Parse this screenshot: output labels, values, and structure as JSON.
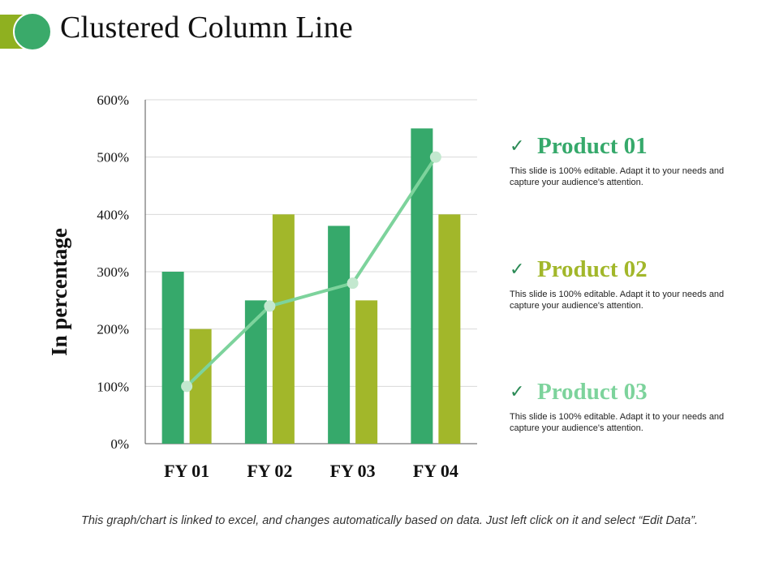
{
  "title": "Clustered Column Line",
  "colors": {
    "product_01": "#36a96b",
    "product_02": "#a2b72a",
    "product_03": "#7dd39c",
    "accent_green": "#3aaa6a",
    "accent_olive": "#8fb020"
  },
  "chart_data": {
    "type": "bar",
    "combo_line_series": "Product 03",
    "categories": [
      "FY 01",
      "FY 02",
      "FY 03",
      "FY 04"
    ],
    "series": [
      {
        "name": "Product 01",
        "type": "bar",
        "values": [
          300,
          250,
          380,
          550
        ]
      },
      {
        "name": "Product 02",
        "type": "bar",
        "values": [
          200,
          400,
          250,
          400
        ]
      },
      {
        "name": "Product 03",
        "type": "line",
        "values": [
          100,
          240,
          280,
          500
        ]
      }
    ],
    "ylabel": "In percentage",
    "ylim": [
      0,
      600
    ],
    "yticks": [
      "0%",
      "100%",
      "200%",
      "300%",
      "400%",
      "500%",
      "600%"
    ],
    "grid": true,
    "legend": "right"
  },
  "legend": [
    {
      "label": "Product 01",
      "icon": "check-icon",
      "desc": "This slide is 100% editable. Adapt it to your needs and capture your audience's attention."
    },
    {
      "label": "Product 02",
      "icon": "check-icon",
      "desc": "This slide is 100% editable. Adapt it to your needs and capture your audience's attention."
    },
    {
      "label": "Product 03",
      "icon": "check-icon",
      "desc": "This slide is 100% editable. Adapt it to your needs and capture your audience's attention."
    }
  ],
  "footer": "This graph/chart is linked to excel, and changes automatically based on data. Just left click on it and select “Edit Data”."
}
